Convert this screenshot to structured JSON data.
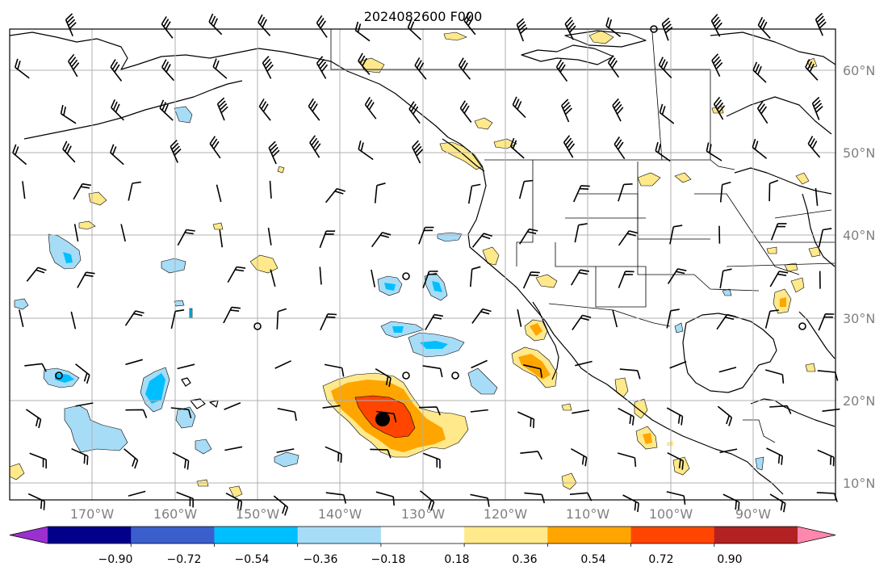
{
  "title": "2024082600 F000",
  "map": {
    "lat_labels": [
      "60°N",
      "50°N",
      "40°N",
      "30°N",
      "20°N",
      "10°N"
    ],
    "lon_labels": [
      "170°W",
      "160°W",
      "150°W",
      "140°W",
      "130°W",
      "120°W",
      "110°W",
      "100°W",
      "90°W"
    ],
    "extent": {
      "lon_min": -180,
      "lon_max": -80,
      "lat_min": 8,
      "lat_max": 65
    }
  },
  "colorbar": {
    "ticks": [
      "−0.90",
      "−0.72",
      "−0.54",
      "−0.36",
      "−0.18",
      "0.18",
      "0.36",
      "0.54",
      "0.72",
      "0.90"
    ],
    "colors": [
      "#9b30d0",
      "#00008b",
      "#3a5fcd",
      "#00bfff",
      "#a7dcf7",
      "#ffffff",
      "#ffe98a",
      "#ffa500",
      "#ff4500",
      "#b22222",
      "#ff87ae"
    ],
    "extend": "both"
  },
  "colors": {
    "shade_pos_1": "#ffe98a",
    "shade_pos_2": "#ffa500",
    "shade_pos_3": "#ff4500",
    "shade_neg_1": "#a7dcf7",
    "shade_neg_2": "#00bfff",
    "grid": "#b0b0b0",
    "label": "#808080"
  },
  "storm_center": {
    "lon": -135,
    "lat": 17.5
  }
}
